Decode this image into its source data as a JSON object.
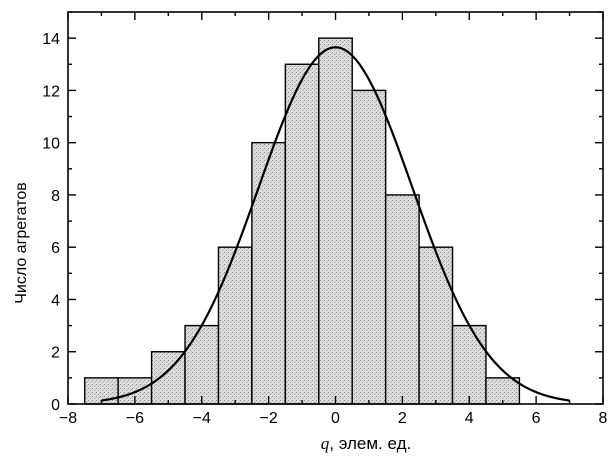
{
  "chart_data": {
    "type": "bar",
    "subtype": "histogram",
    "bins": [
      {
        "x0": -7.5,
        "x1": -6.5,
        "value": 1
      },
      {
        "x0": -6.5,
        "x1": -5.5,
        "value": 1
      },
      {
        "x0": -5.5,
        "x1": -4.5,
        "value": 2
      },
      {
        "x0": -4.5,
        "x1": -3.5,
        "value": 3
      },
      {
        "x0": -3.5,
        "x1": -2.5,
        "value": 6
      },
      {
        "x0": -2.5,
        "x1": -1.5,
        "value": 10
      },
      {
        "x0": -1.5,
        "x1": -0.5,
        "value": 13
      },
      {
        "x0": -0.5,
        "x1": 0.5,
        "value": 14
      },
      {
        "x0": 0.5,
        "x1": 1.5,
        "value": 12
      },
      {
        "x0": 1.5,
        "x1": 2.5,
        "value": 8
      },
      {
        "x0": 2.5,
        "x1": 3.5,
        "value": 6
      },
      {
        "x0": 3.5,
        "x1": 4.5,
        "value": 3
      },
      {
        "x0": 4.5,
        "x1": 5.5,
        "value": 1
      }
    ],
    "fit_curve": {
      "type": "gaussian",
      "mean": 0,
      "sigma": 2.3,
      "peak": 13.65,
      "x_range": [
        -7,
        7
      ]
    },
    "xlabel_var": "q",
    "xlabel_rest": ", элем. ед.",
    "ylabel": "Число агрегатов",
    "xlim": [
      -8,
      8
    ],
    "ylim": [
      0,
      15
    ],
    "xticks": [
      "−8",
      "−6",
      "−4",
      "−2",
      "0",
      "2",
      "4",
      "6",
      "8"
    ],
    "yticks": [
      "0",
      "2",
      "4",
      "6",
      "8",
      "10",
      "12",
      "14"
    ],
    "grid": false,
    "colors": {
      "bar_fill": "#d6d6d6",
      "bar_stroke": "#000000",
      "curve": "#000000",
      "axes": "#000000"
    }
  }
}
